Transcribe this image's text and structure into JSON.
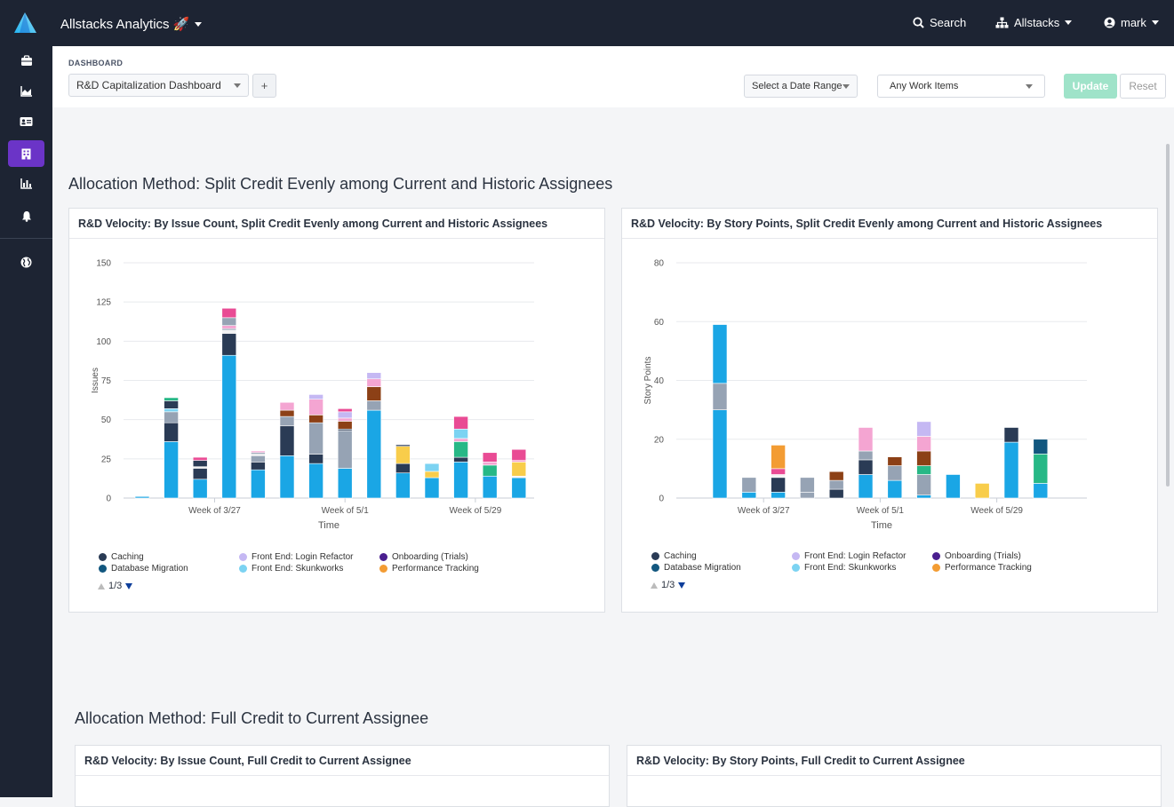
{
  "colors": {
    "accent": "#6b34c7",
    "update_bg": "#9fe3c9",
    "nav": "#1d2433"
  },
  "topbar": {
    "app_title": "Allstacks Analytics 🚀",
    "search": "Search",
    "org": "Allstacks",
    "user": "mark"
  },
  "sidebar": {
    "items": [
      {
        "icon": "briefcase-icon"
      },
      {
        "icon": "area-chart-icon"
      },
      {
        "icon": "id-card-icon"
      },
      {
        "icon": "building-icon"
      },
      {
        "icon": "bar-chart-icon"
      },
      {
        "icon": "bell-icon"
      },
      {
        "icon": "globe-icon"
      }
    ]
  },
  "controls": {
    "label": "DASHBOARD",
    "dashboard": "R&D Capitalization Dashboard",
    "add": "+",
    "date_range": "Select a Date Range",
    "work_items": "Any Work Items",
    "update": "Update",
    "reset": "Reset"
  },
  "sections": [
    {
      "title": "Allocation Method: Split Credit Evenly among Current and Historic Assignees"
    },
    {
      "title": "Allocation Method: Full Credit to Current Assignee"
    }
  ],
  "series_colors": {
    "Caching": "#2a3b55",
    "Database Migration": "#12577f",
    "Front End: Login Refactor": "#c5b8f3",
    "Front End: Skunkworks": "#7cd3f2",
    "Onboarding (Trials)": "#4a1f8f",
    "Performance Tracking": "#f39c33",
    "s_blue": "#1aa6e5",
    "s_gray": "#96a3b4",
    "s_pink": "#e94b94",
    "s_lpink": "#f4a5d2",
    "s_brown": "#8c4016",
    "s_green": "#27b886",
    "s_yellow": "#f8cd4b",
    "s_lblue": "#7cd3f2",
    "s_white": "#f2f2f2"
  },
  "legend": {
    "items": [
      "Caching",
      "Database Migration",
      "Front End: Login Refactor",
      "Front End: Skunkworks",
      "Onboarding (Trials)",
      "Performance Tracking"
    ],
    "pager": "1/3"
  },
  "chart_data": [
    {
      "type": "bar",
      "stacked": true,
      "title": "R&D Velocity: By Issue Count, Split Credit Evenly among Current and Historic Assignees",
      "xlabel": "Time",
      "ylabel": "Issues",
      "ylim": [
        0,
        150
      ],
      "yticks": [
        0,
        25,
        50,
        75,
        100,
        125,
        150
      ],
      "xtick_labels": [
        {
          "label": "Week of 3/27",
          "index": 2.5
        },
        {
          "label": "Week of 5/1",
          "index": 7
        },
        {
          "label": "Week of 5/29",
          "index": 11.5
        }
      ],
      "bars": [
        [
          [
            "s_blue",
            1
          ]
        ],
        [
          [
            "s_blue",
            36
          ],
          [
            "Caching",
            12
          ],
          [
            "s_gray",
            7
          ],
          [
            "s_lblue",
            2
          ],
          [
            "Caching",
            5
          ],
          [
            "s_green",
            2
          ]
        ],
        [
          [
            "s_blue",
            12
          ],
          [
            "Caching",
            7
          ],
          [
            "s_white",
            1
          ],
          [
            "Caching",
            4
          ],
          [
            "s_pink",
            2
          ]
        ],
        [
          [
            "s_blue",
            91
          ],
          [
            "Caching",
            14
          ],
          [
            "s_white",
            2
          ],
          [
            "s_gray",
            1
          ],
          [
            "s_lpink",
            2
          ],
          [
            "s_gray",
            5
          ],
          [
            "s_pink",
            6
          ]
        ],
        [
          [
            "s_blue",
            18
          ],
          [
            "Caching",
            5
          ],
          [
            "s_gray",
            4
          ],
          [
            "s_white",
            1
          ],
          [
            "s_gray",
            1
          ],
          [
            "s_lpink",
            1
          ]
        ],
        [
          [
            "s_blue",
            27
          ],
          [
            "Caching",
            19
          ],
          [
            "s_gray",
            6
          ],
          [
            "s_brown",
            4
          ],
          [
            "s_lpink",
            5
          ]
        ],
        [
          [
            "s_blue",
            22
          ],
          [
            "Caching",
            6
          ],
          [
            "s_gray",
            20
          ],
          [
            "s_brown",
            5
          ],
          [
            "s_lpink",
            10
          ],
          [
            "Front End: Login Refactor",
            3
          ]
        ],
        [
          [
            "s_blue",
            19
          ],
          [
            "s_gray",
            24
          ],
          [
            "Caching",
            1
          ],
          [
            "s_brown",
            5
          ],
          [
            "s_lpink",
            2
          ],
          [
            "Front End: Login Refactor",
            4
          ],
          [
            "s_pink",
            2
          ]
        ],
        [
          [
            "s_blue",
            56
          ],
          [
            "s_gray",
            6
          ],
          [
            "s_brown",
            9
          ],
          [
            "s_lpink",
            5
          ],
          [
            "Front End: Login Refactor",
            4
          ]
        ],
        [
          [
            "s_blue",
            16
          ],
          [
            "Caching",
            6
          ],
          [
            "s_yellow",
            11
          ],
          [
            "Caching",
            1
          ]
        ],
        [
          [
            "s_blue",
            13
          ],
          [
            "s_yellow",
            4
          ],
          [
            "s_lblue",
            5
          ]
        ],
        [
          [
            "s_blue",
            23
          ],
          [
            "Caching",
            3
          ],
          [
            "s_green",
            10
          ],
          [
            "s_lpink",
            2
          ],
          [
            "s_lblue",
            6
          ],
          [
            "s_pink",
            8
          ]
        ],
        [
          [
            "s_blue",
            14
          ],
          [
            "s_green",
            7
          ],
          [
            "s_lpink",
            2
          ],
          [
            "s_pink",
            6
          ]
        ],
        [
          [
            "s_blue",
            13
          ],
          [
            "s_white",
            1
          ],
          [
            "s_yellow",
            9
          ],
          [
            "s_lpink",
            1
          ],
          [
            "s_pink",
            7
          ]
        ]
      ]
    },
    {
      "type": "bar",
      "stacked": true,
      "title": "R&D Velocity: By Story Points, Split Credit Evenly among Current and Historic Assignees",
      "xlabel": "Time",
      "ylabel": "Story Points",
      "ylim": [
        0,
        80
      ],
      "yticks": [
        0,
        20,
        40,
        60,
        80
      ],
      "xtick_labels": [
        {
          "label": "Week of 3/27",
          "index": 1.5
        },
        {
          "label": "Week of 5/1",
          "index": 5.5
        },
        {
          "label": "Week of 5/29",
          "index": 9.5
        }
      ],
      "bars": [
        [
          [
            "s_blue",
            30
          ],
          [
            "s_gray",
            9
          ],
          [
            "s_blue",
            20
          ]
        ],
        [
          [
            "s_blue",
            2
          ],
          [
            "s_gray",
            5
          ]
        ],
        [
          [
            "s_blue",
            2
          ],
          [
            "Caching",
            5
          ],
          [
            "s_white",
            1
          ],
          [
            "s_pink",
            2
          ],
          [
            "Performance Tracking",
            8
          ]
        ],
        [
          [
            "s_gray",
            2
          ],
          [
            "s_gray",
            5
          ]
        ],
        [
          [
            "Caching",
            3
          ],
          [
            "s_gray",
            3
          ],
          [
            "s_brown",
            3
          ]
        ],
        [
          [
            "s_blue",
            8
          ],
          [
            "Caching",
            5
          ],
          [
            "s_gray",
            3
          ],
          [
            "s_lpink",
            8
          ]
        ],
        [
          [
            "s_blue",
            6
          ],
          [
            "s_gray",
            5
          ],
          [
            "s_brown",
            3
          ]
        ],
        [
          [
            "s_blue",
            1
          ],
          [
            "s_gray",
            7
          ],
          [
            "s_green",
            3
          ],
          [
            "s_brown",
            5
          ],
          [
            "s_lpink",
            5
          ],
          [
            "Front End: Login Refactor",
            5
          ]
        ],
        [
          [
            "s_blue",
            8
          ]
        ],
        [
          [
            "s_yellow",
            5
          ]
        ],
        [
          [
            "s_blue",
            19
          ],
          [
            "Caching",
            5
          ]
        ],
        [
          [
            "s_blue",
            5
          ],
          [
            "s_green",
            10
          ],
          [
            "Database Migration",
            5
          ]
        ]
      ]
    }
  ],
  "lower_cards": [
    {
      "title": "R&D Velocity: By Issue Count, Full Credit to Current Assignee"
    },
    {
      "title": "R&D Velocity: By Story Points, Full Credit to Current Assignee"
    }
  ]
}
